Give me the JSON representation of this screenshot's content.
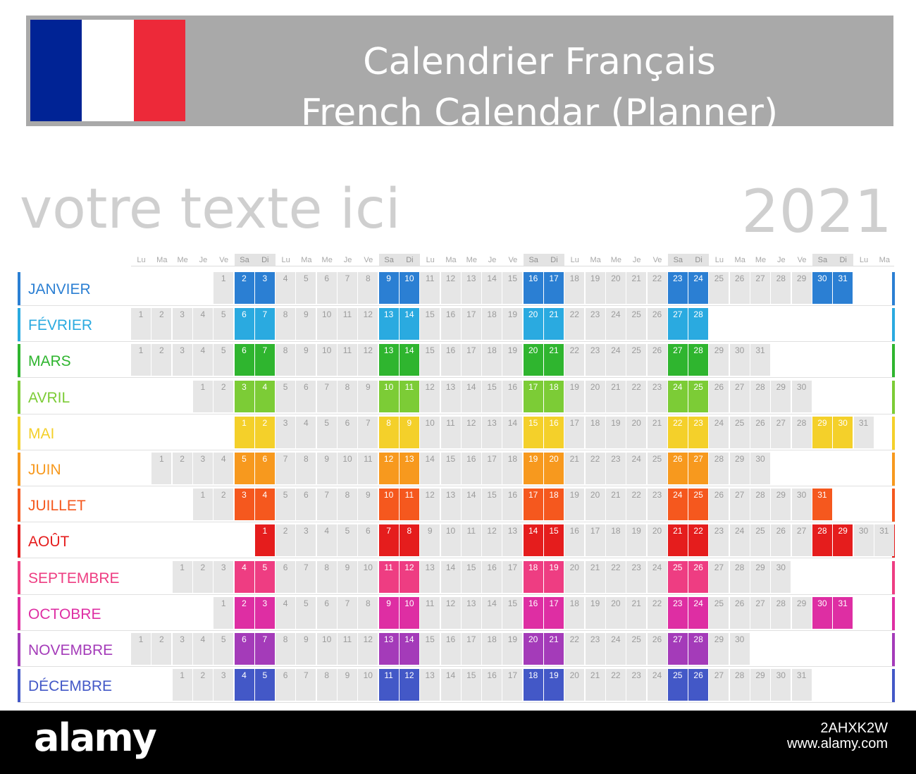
{
  "banner": {
    "flag_colors": [
      "#002395",
      "#ffffff",
      "#ed2939"
    ],
    "title_fr": "Calendrier Français",
    "title_en": "French Calendar (Planner)"
  },
  "subtitle": "votre texte ici",
  "year": "2021",
  "weekday_headers": [
    "Lu",
    "Ma",
    "Me",
    "Je",
    "Ve",
    "Sa",
    "Di",
    "Lu",
    "Ma",
    "Me",
    "Je",
    "Ve",
    "Sa",
    "Di",
    "Lu",
    "Ma",
    "Me",
    "Je",
    "Ve",
    "Sa",
    "Di",
    "Lu",
    "Ma",
    "Me",
    "Je",
    "Ve",
    "Sa",
    "Di",
    "Lu",
    "Ma",
    "Me",
    "Je",
    "Ve",
    "Sa",
    "Di",
    "Lu",
    "Ma"
  ],
  "months": [
    {
      "name": "JANVIER",
      "color": "#2b7fd3",
      "start_col": 4,
      "days": 31
    },
    {
      "name": "FÉVRIER",
      "color": "#2aaae0",
      "start_col": 0,
      "days": 28
    },
    {
      "name": "MARS",
      "color": "#2fb52f",
      "start_col": 0,
      "days": 31
    },
    {
      "name": "AVRIL",
      "color": "#7ccc36",
      "start_col": 3,
      "days": 30
    },
    {
      "name": "MAI",
      "color": "#f4d02a",
      "start_col": 5,
      "days": 31
    },
    {
      "name": "JUIN",
      "color": "#f7991e",
      "start_col": 1,
      "days": 30
    },
    {
      "name": "JUILLET",
      "color": "#f5581e",
      "start_col": 3,
      "days": 31
    },
    {
      "name": "AOÛT",
      "color": "#e51d1d",
      "start_col": 6,
      "days": 31
    },
    {
      "name": "SEPTEMBRE",
      "color": "#ee3d82",
      "start_col": 2,
      "days": 30
    },
    {
      "name": "OCTOBRE",
      "color": "#de2ea3",
      "start_col": 4,
      "days": 31
    },
    {
      "name": "NOVEMBRE",
      "color": "#a43bb9",
      "start_col": 0,
      "days": 30
    },
    {
      "name": "DÉCEMBRE",
      "color": "#4358c7",
      "start_col": 2,
      "days": 31
    }
  ],
  "watermark": {
    "logo": "alamy",
    "image_id": "2AHXK2W",
    "url": "www.alamy.com"
  }
}
